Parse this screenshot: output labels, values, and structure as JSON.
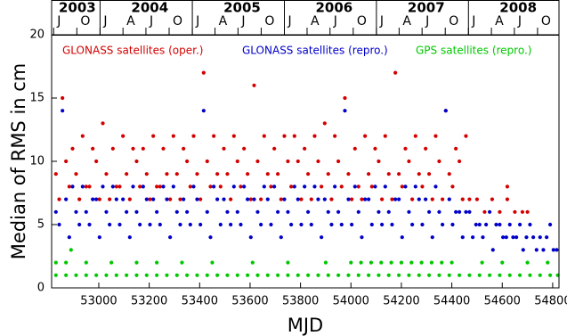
{
  "chart_data": {
    "type": "scatter",
    "x_label": "MJD",
    "y_label": "Median of RMS in cm",
    "xlim": [
      52813,
      54825
    ],
    "ylim": [
      0,
      20
    ],
    "xticks": [
      53000,
      53200,
      53400,
      53600,
      53800,
      54000,
      54200,
      54400,
      54600,
      54800
    ],
    "yticks": [
      0,
      5,
      10,
      15,
      20
    ],
    "legend": "top",
    "top_axis": {
      "years": [
        {
          "value": 52640,
          "label": "2003"
        },
        {
          "value": 53005,
          "label": "2004"
        },
        {
          "value": 53371,
          "label": "2005"
        },
        {
          "value": 53736,
          "label": "2006"
        },
        {
          "value": 54101,
          "label": "2007"
        },
        {
          "value": 54466,
          "label": "2008"
        }
      ],
      "months": [
        {
          "value": 52821,
          "label": "J"
        },
        {
          "value": 52913,
          "label": "O"
        },
        {
          "value": 53005,
          "label": "J"
        },
        {
          "value": 53096,
          "label": "A"
        },
        {
          "value": 53187,
          "label": "J"
        },
        {
          "value": 53279,
          "label": "O"
        },
        {
          "value": 53371,
          "label": "J"
        },
        {
          "value": 53461,
          "label": "A"
        },
        {
          "value": 53552,
          "label": "J"
        },
        {
          "value": 53644,
          "label": "O"
        },
        {
          "value": 53736,
          "label": "J"
        },
        {
          "value": 53826,
          "label": "A"
        },
        {
          "value": 53917,
          "label": "J"
        },
        {
          "value": 54009,
          "label": "O"
        },
        {
          "value": 54101,
          "label": "J"
        },
        {
          "value": 54191,
          "label": "A"
        },
        {
          "value": 54282,
          "label": "J"
        },
        {
          "value": 54374,
          "label": "O"
        },
        {
          "value": 54466,
          "label": "J"
        },
        {
          "value": 54557,
          "label": "A"
        },
        {
          "value": 54648,
          "label": "J"
        },
        {
          "value": 54740,
          "label": "O"
        }
      ]
    },
    "series": [
      {
        "name": "GLONASS satellites (oper.)",
        "color": "#d40000",
        "x": [
          52830,
          52870,
          52910,
          52950,
          52990,
          53030,
          53070,
          53110,
          53150,
          53190,
          53230,
          53270,
          53310,
          53350,
          53390,
          53430,
          53470,
          53510,
          53550,
          53590,
          53630,
          53670,
          53710,
          53750,
          53790,
          53830,
          53870,
          53910,
          53950,
          53990,
          54030,
          54070,
          54110,
          54150,
          54190,
          54230,
          54270,
          54310,
          54350,
          54390,
          54430,
          52843,
          52883,
          52923,
          52963,
          53003,
          53043,
          53083,
          53123,
          53163,
          53203,
          53243,
          53283,
          53323,
          53363,
          53403,
          53443,
          53483,
          53523,
          53563,
          53603,
          53643,
          53683,
          53723,
          53763,
          53803,
          53843,
          53883,
          53923,
          53963,
          54003,
          54043,
          54083,
          54123,
          54163,
          54203,
          54243,
          54283,
          54323,
          54363,
          54403,
          54443,
          52856,
          52896,
          52936,
          52976,
          53016,
          53056,
          53096,
          53136,
          53176,
          53216,
          53256,
          53296,
          53336,
          53376,
          53416,
          53456,
          53496,
          53536,
          53576,
          53616,
          53656,
          53696,
          53736,
          53776,
          53816,
          53856,
          53896,
          53936,
          53976,
          54016,
          54056,
          54096,
          54136,
          54176,
          54216,
          54256,
          54296,
          54336,
          54376,
          54416,
          54456,
          54470,
          54500,
          54530,
          54560,
          54590,
          54620,
          54650,
          54680,
          54700,
          54620
        ],
        "values": [
          9,
          10,
          9,
          8,
          10,
          9,
          8,
          9,
          10,
          9,
          8,
          9,
          9,
          10,
          9,
          10,
          9,
          9,
          10,
          9,
          10,
          9,
          9,
          10,
          10,
          9,
          10,
          9,
          10,
          9,
          8,
          9,
          10,
          9,
          9,
          10,
          9,
          9,
          10,
          9,
          10,
          7,
          8,
          7,
          8,
          7,
          7,
          8,
          7,
          8,
          7,
          8,
          7,
          7,
          8,
          7,
          8,
          8,
          7,
          8,
          7,
          7,
          8,
          7,
          8,
          7,
          7,
          8,
          7,
          8,
          7,
          7,
          8,
          7,
          7,
          8,
          7,
          8,
          7,
          7,
          8,
          7,
          15,
          11,
          12,
          11,
          13,
          11,
          12,
          11,
          11,
          12,
          11,
          12,
          11,
          12,
          17,
          12,
          11,
          12,
          11,
          16,
          12,
          11,
          12,
          12,
          11,
          12,
          13,
          12,
          15,
          11,
          12,
          11,
          12,
          17,
          11,
          12,
          11,
          12,
          14,
          11,
          12,
          7,
          7,
          6,
          7,
          6,
          7,
          6,
          6,
          6,
          8
        ]
      },
      {
        "name": "GLONASS satellites (repro.)",
        "color": "#0000c8",
        "x": [
          52830,
          52870,
          52910,
          52950,
          52990,
          53030,
          53070,
          53110,
          53150,
          53190,
          53230,
          53270,
          53310,
          53350,
          53390,
          53430,
          53470,
          53510,
          53550,
          53590,
          53630,
          53670,
          53710,
          53750,
          53790,
          53830,
          53870,
          53910,
          53950,
          53990,
          54030,
          54070,
          54110,
          54150,
          54190,
          54230,
          54270,
          54310,
          54350,
          54390,
          54430,
          54470,
          54510,
          54550,
          54590,
          54630,
          54670,
          54710,
          54750,
          54790,
          52843,
          52883,
          52923,
          52963,
          53003,
          53043,
          53083,
          53123,
          53163,
          53203,
          53243,
          53283,
          53323,
          53363,
          53403,
          53443,
          53483,
          53523,
          53563,
          53603,
          53643,
          53683,
          53723,
          53763,
          53803,
          53843,
          53883,
          53923,
          53963,
          54003,
          54043,
          54083,
          54123,
          54163,
          54203,
          54243,
          54283,
          54323,
          54363,
          54403,
          54443,
          54483,
          54523,
          54563,
          54603,
          54643,
          54683,
          54723,
          54763,
          54803,
          52856,
          52896,
          52936,
          52976,
          53016,
          53056,
          53096,
          53136,
          53176,
          53216,
          53256,
          53296,
          53336,
          53376,
          53416,
          53456,
          53496,
          53536,
          53576,
          53616,
          53656,
          53696,
          53736,
          53776,
          53816,
          53856,
          53896,
          53936,
          53976,
          54016,
          54056,
          54096,
          54136,
          54176,
          54216,
          54256,
          54296,
          54336,
          54376,
          54416,
          54456,
          54496,
          54536,
          54576,
          54616,
          54656,
          54696,
          54736,
          54776,
          54816
        ],
        "values": [
          6,
          7,
          6,
          6,
          7,
          6,
          7,
          6,
          6,
          7,
          6,
          7,
          6,
          6,
          7,
          6,
          7,
          6,
          6,
          7,
          6,
          7,
          6,
          6,
          7,
          6,
          7,
          6,
          6,
          7,
          6,
          7,
          6,
          6,
          7,
          6,
          7,
          6,
          6,
          7,
          6,
          6,
          5,
          6,
          5,
          5,
          5,
          5,
          4,
          5,
          5,
          4,
          5,
          5,
          4,
          5,
          5,
          4,
          5,
          5,
          5,
          4,
          5,
          5,
          5,
          4,
          5,
          5,
          5,
          4,
          5,
          5,
          4,
          5,
          5,
          5,
          4,
          5,
          5,
          5,
          4,
          5,
          5,
          5,
          4,
          5,
          5,
          4,
          5,
          5,
          4,
          4,
          4,
          3,
          4,
          4,
          3,
          4,
          3,
          3,
          14,
          8,
          8,
          7,
          8,
          8,
          7,
          8,
          8,
          7,
          8,
          8,
          7,
          8,
          14,
          8,
          7,
          8,
          8,
          7,
          8,
          8,
          7,
          8,
          8,
          8,
          7,
          8,
          14,
          8,
          7,
          8,
          8,
          7,
          8,
          8,
          7,
          8,
          14,
          6,
          6,
          5,
          5,
          5,
          4,
          4,
          4,
          3,
          4,
          3
        ]
      },
      {
        "name": "GPS satellites (repro.)",
        "color": "#00c800",
        "x": [
          52830,
          52870,
          52910,
          52950,
          52990,
          53030,
          53070,
          53110,
          53150,
          53190,
          53230,
          53270,
          53310,
          53350,
          53390,
          53430,
          53470,
          53510,
          53550,
          53590,
          53630,
          53670,
          53710,
          53750,
          53790,
          53830,
          53870,
          53910,
          53950,
          53990,
          54030,
          54070,
          54110,
          54150,
          54190,
          54230,
          54270,
          54310,
          54350,
          54390,
          54430,
          54470,
          54510,
          54550,
          54590,
          54630,
          54670,
          54710,
          54750,
          54790,
          54820,
          52830,
          52870,
          52890,
          52950,
          53050,
          53150,
          53230,
          53330,
          53450,
          53610,
          53750,
          53900,
          54000,
          54040,
          54080,
          54120,
          54160,
          54200,
          54240,
          54280,
          54320,
          54360,
          54400,
          54520,
          54600,
          54700,
          54780
        ],
        "values": [
          1,
          1,
          1,
          1,
          1,
          1,
          1,
          1,
          1,
          1,
          1,
          1,
          1,
          1,
          1,
          1,
          1,
          1,
          1,
          1,
          1,
          1,
          1,
          1,
          1,
          1,
          1,
          1,
          1,
          1,
          1,
          1,
          1,
          1,
          1,
          1,
          1,
          1,
          1,
          1,
          1,
          1,
          1,
          1,
          1,
          1,
          1,
          1,
          1,
          1,
          1,
          2,
          2,
          3,
          2,
          2,
          2,
          2,
          2,
          2,
          2,
          2,
          2,
          2,
          2,
          2,
          2,
          2,
          2,
          2,
          2,
          2,
          2,
          2,
          2,
          2,
          2,
          2
        ]
      }
    ]
  }
}
